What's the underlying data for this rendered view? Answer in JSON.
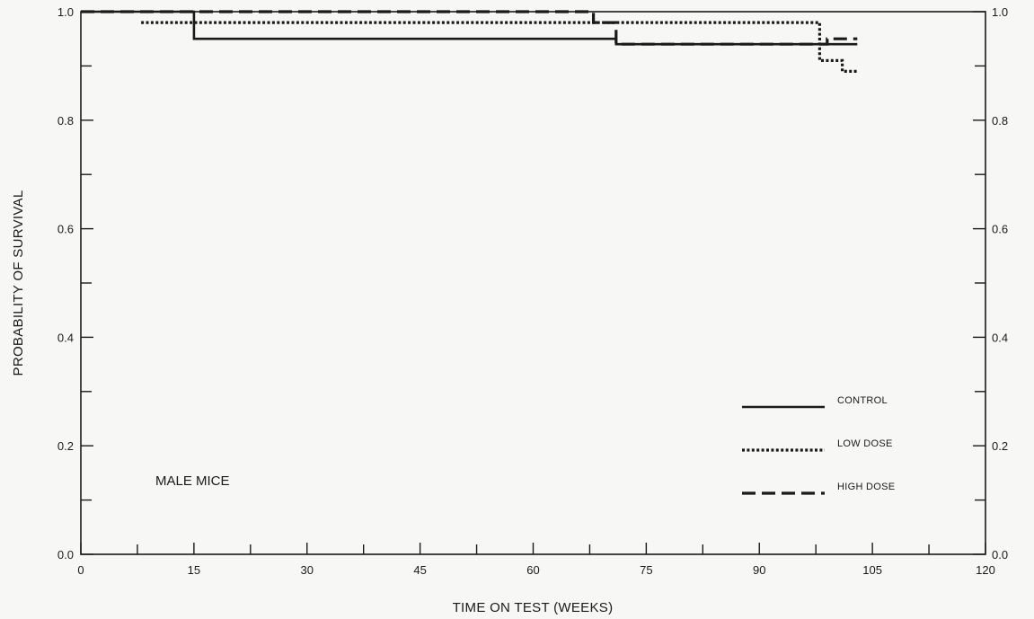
{
  "chart_data": {
    "type": "line",
    "step": true,
    "xlabel": "TIME ON TEST (WEEKS)",
    "ylabel": "PROBABILITY OF SURVIVAL",
    "annotation": "MALE MICE",
    "xlim": [
      0,
      120
    ],
    "ylim": [
      0,
      1
    ],
    "x_ticks": [
      "0",
      "15",
      "30",
      "45",
      "60",
      "75",
      "90",
      "105",
      "120"
    ],
    "y_ticks_left": [
      "0.0",
      "0.2",
      "0.4",
      "0.6",
      "0.8",
      "1.0"
    ],
    "y_ticks_right": [
      "0.0",
      "0.2",
      "0.4",
      "0.6",
      "0.8",
      "1.0"
    ],
    "grid": false,
    "legend_position": "bottom-right",
    "series": [
      {
        "name": "CONTROL",
        "style": "solid",
        "color": "#1a1a1a",
        "points": [
          [
            0,
            1.0
          ],
          [
            15,
            1.0
          ],
          [
            15,
            0.95
          ],
          [
            71,
            0.95
          ],
          [
            71,
            0.94
          ],
          [
            103,
            0.94
          ]
        ]
      },
      {
        "name": "LOW DOSE",
        "style": "dotted",
        "color": "#1a1a1a",
        "points": [
          [
            8,
            0.98
          ],
          [
            98,
            0.98
          ],
          [
            98,
            0.91
          ],
          [
            101,
            0.91
          ],
          [
            101,
            0.89
          ],
          [
            103,
            0.89
          ]
        ]
      },
      {
        "name": "HIGH DOSE",
        "style": "dashed",
        "color": "#1a1a1a",
        "points": [
          [
            0,
            1.0
          ],
          [
            68,
            1.0
          ],
          [
            68,
            0.98
          ],
          [
            71,
            0.98
          ],
          [
            71,
            0.94
          ],
          [
            99,
            0.94
          ],
          [
            99,
            0.95
          ],
          [
            103,
            0.95
          ]
        ]
      }
    ]
  }
}
